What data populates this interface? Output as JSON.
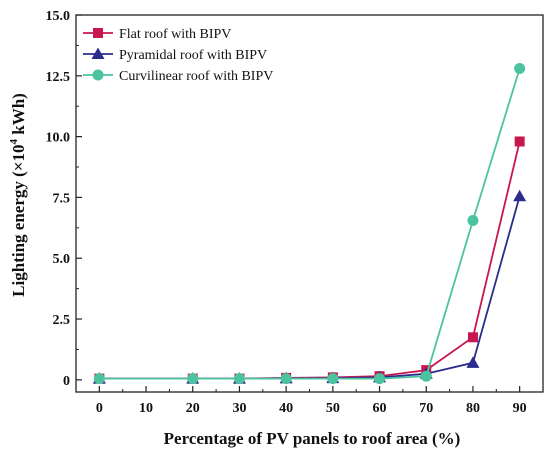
{
  "chart_data": {
    "type": "line",
    "xlabel": "Percentage of PV panels to roof area (%)",
    "ylabel": {
      "prefix": "Lighting energy (×10",
      "superscript": "4",
      "suffix": " kWh)"
    },
    "x": [
      0,
      20,
      30,
      40,
      50,
      60,
      70,
      80,
      90
    ],
    "xticks": [
      0,
      10,
      20,
      30,
      40,
      50,
      60,
      70,
      80,
      90
    ],
    "xtick_labels": [
      "0",
      "10",
      "20",
      "30",
      "40",
      "50",
      "60",
      "70",
      "80",
      "90"
    ],
    "xlim": [
      -5,
      95
    ],
    "yticks": [
      0,
      2.5,
      5.0,
      7.5,
      10.0,
      12.5,
      15.0
    ],
    "ytick_labels": [
      "0",
      "2.5",
      "5.0",
      "7.5",
      "10.0",
      "12.5",
      "15.0"
    ],
    "ylim": [
      -0.5,
      15.0
    ],
    "grid": false,
    "legend_position": "top-left",
    "series": [
      {
        "name": "Flat roof with BIPV",
        "color": "#c8174e",
        "marker": "square",
        "values": [
          0.05,
          0.05,
          0.05,
          0.08,
          0.1,
          0.15,
          0.4,
          1.75,
          9.8
        ]
      },
      {
        "name": "Pyramidal roof with BIPV",
        "color": "#2b2d8e",
        "marker": "triangle",
        "values": [
          0.05,
          0.05,
          0.05,
          0.06,
          0.07,
          0.1,
          0.25,
          0.7,
          7.55
        ]
      },
      {
        "name": "Curvilinear roof with BIPV",
        "color": "#4cc39f",
        "marker": "circle",
        "values": [
          0.05,
          0.05,
          0.05,
          0.05,
          0.05,
          0.05,
          0.15,
          6.55,
          12.8
        ]
      }
    ]
  }
}
